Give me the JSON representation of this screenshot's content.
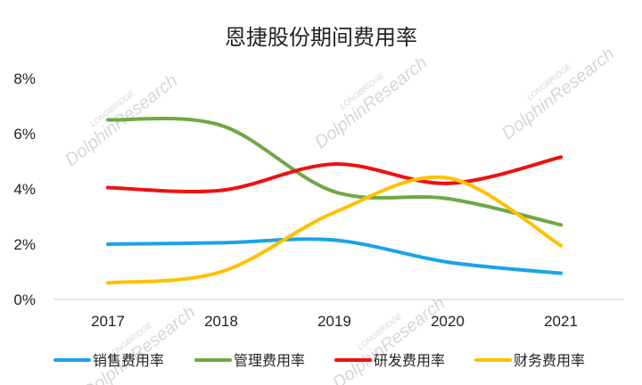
{
  "chart_data": {
    "type": "line",
    "title": "恩捷股份期间费用率",
    "categories": [
      "2017",
      "2018",
      "2019",
      "2020",
      "2021"
    ],
    "ylim": [
      0,
      8
    ],
    "y_ticks": [
      "0%",
      "2%",
      "4%",
      "6%",
      "8%"
    ],
    "y_unit": "%",
    "grid": false,
    "smooth": true,
    "legend_position": "bottom",
    "series": [
      {
        "name": "销售费用率",
        "color": "#1aa3e8",
        "values": [
          2.0,
          2.05,
          2.15,
          1.35,
          0.95
        ]
      },
      {
        "name": "管理费用率",
        "color": "#6fa843",
        "values": [
          6.5,
          6.3,
          3.9,
          3.65,
          2.7
        ]
      },
      {
        "name": "研发费用率",
        "color": "#ee1111",
        "values": [
          4.05,
          3.95,
          4.9,
          4.2,
          5.15
        ]
      },
      {
        "name": "财务费用率",
        "color": "#ffc000",
        "values": [
          0.6,
          1.0,
          3.15,
          4.4,
          1.95
        ]
      }
    ]
  },
  "watermark": {
    "brand": "DolphinResearch",
    "sub": "LONGBRIDGE"
  }
}
